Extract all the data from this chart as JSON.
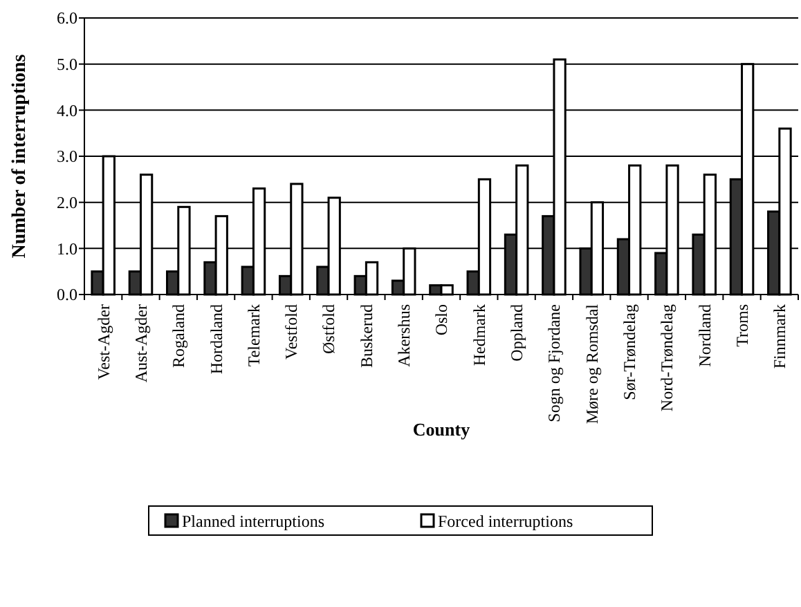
{
  "chart_data": {
    "type": "bar",
    "xlabel": "County",
    "ylabel": "Number of interruptions",
    "categories": [
      "Vest-Agder",
      "Aust-Agder",
      "Rogaland",
      "Hordaland",
      "Telemark",
      "Vestfold",
      "Østfold",
      "Buskerud",
      "Akershus",
      "Oslo",
      "Hedmark",
      "Oppland",
      "Sogn og Fjordane",
      "Møre og Romsdal",
      "Sør-Trøndelag",
      "Nord-Trøndelag",
      "Nordland",
      "Troms",
      "Finnmark"
    ],
    "series": [
      {
        "name": "Planned interruptions",
        "color": "#333333",
        "values": [
          0.5,
          0.5,
          0.5,
          0.7,
          0.6,
          0.4,
          0.6,
          0.4,
          0.3,
          0.2,
          0.5,
          1.3,
          1.7,
          1.0,
          1.2,
          0.9,
          1.3,
          2.5,
          1.8
        ]
      },
      {
        "name": "Forced interruptions",
        "color": "#ffffff",
        "values": [
          3.0,
          2.6,
          1.9,
          1.7,
          2.3,
          2.4,
          2.1,
          0.7,
          1.0,
          0.2,
          2.5,
          2.8,
          5.1,
          2.0,
          2.8,
          2.8,
          2.6,
          5.0,
          3.6
        ]
      }
    ],
    "ylim": [
      0,
      6
    ],
    "yticks": [
      {
        "value": 0,
        "label": "0.0"
      },
      {
        "value": 1,
        "label": "1.0"
      },
      {
        "value": 2,
        "label": "2.0"
      },
      {
        "value": 3,
        "label": "3.0"
      },
      {
        "value": 4,
        "label": "4.0"
      },
      {
        "value": 5,
        "label": "5.0"
      },
      {
        "value": 6,
        "label": "6.0"
      }
    ],
    "grid": "y",
    "legend": "bottom"
  }
}
